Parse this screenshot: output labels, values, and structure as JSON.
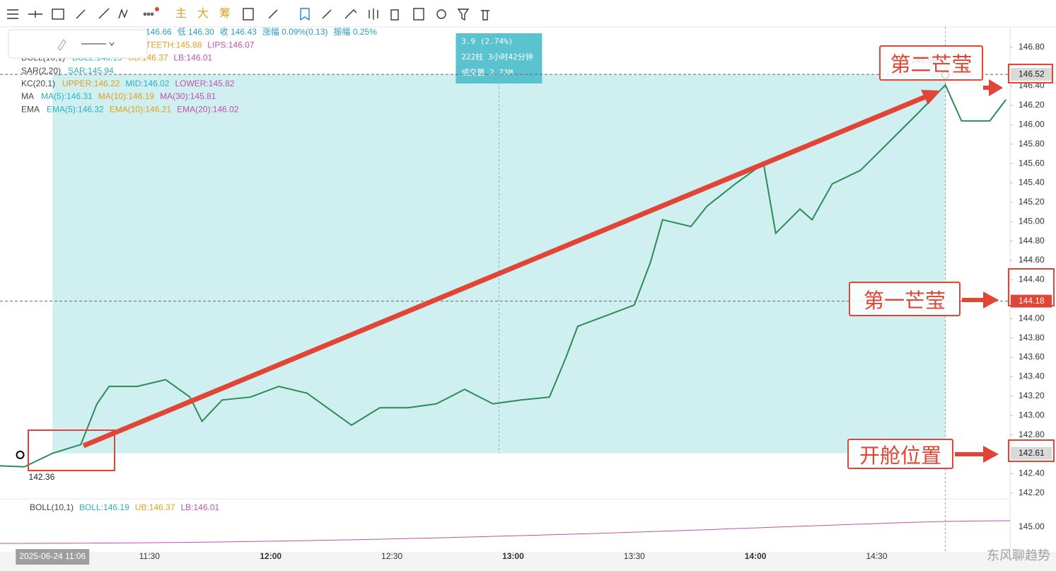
{
  "toolbar": {
    "buttons": [
      "主",
      "大",
      "筹"
    ]
  },
  "legend": [
    {
      "name": "",
      "items": [
        {
          "text": "146.66",
          "color": "#29a0c0"
        },
        {
          "text": "低 146.30",
          "color": "#29a0c0"
        },
        {
          "text": "收 146.43",
          "color": "#29a0c0"
        },
        {
          "text": "涨幅 0.09%(0.13)",
          "color": "#29a0c0"
        },
        {
          "text": "振幅 0.25%",
          "color": "#29a0c0"
        }
      ]
    },
    {
      "name": "",
      "items": [
        {
          "text": "TEETH:145.88",
          "color": "#e0a020"
        },
        {
          "text": "LIPS:146.07",
          "color": "#c050b0"
        }
      ]
    },
    {
      "name": "BOLL(10,1)",
      "items": [
        {
          "text": "BOLL:146.19",
          "color": "#29b0c8"
        },
        {
          "text": "UB:146.37",
          "color": "#e0a020"
        },
        {
          "text": "LB:146.01",
          "color": "#c050b0"
        }
      ]
    },
    {
      "name": "SAR(2,20)",
      "items": [
        {
          "text": "SAR:145.94",
          "color": "#29b0c8"
        }
      ]
    },
    {
      "name": "KC(20,1)",
      "items": [
        {
          "text": "UPPER:146.22",
          "color": "#e0a020"
        },
        {
          "text": "MID:146.02",
          "color": "#29b0c8"
        },
        {
          "text": "LOWER:145.82",
          "color": "#c050b0"
        }
      ]
    },
    {
      "name": "MA",
      "items": [
        {
          "text": "MA(5):146.31",
          "color": "#29b0c8"
        },
        {
          "text": "MA(10):146.19",
          "color": "#e0a020"
        },
        {
          "text": "MA(30):145.81",
          "color": "#c050b0"
        }
      ]
    },
    {
      "name": "EMA",
      "items": [
        {
          "text": "EMA(5):146.32",
          "color": "#29b0c8"
        },
        {
          "text": "EMA(10):146.21",
          "color": "#e0a020"
        },
        {
          "text": "EMA(20):146.02",
          "color": "#c050b0"
        }
      ]
    }
  ],
  "sub_legend": {
    "name": "BOLL(10,1)",
    "items": [
      {
        "text": "BOLL:146.19",
        "color": "#29b0c8"
      },
      {
        "text": "UB:146.37",
        "color": "#e0a020"
      },
      {
        "text": "LB:146.01",
        "color": "#c050b0"
      }
    ],
    "axis_label": "145.00"
  },
  "chart_data": {
    "type": "line",
    "color": "#2e8b57",
    "x": [
      "10:53",
      "10:59",
      "11:06",
      "11:13",
      "11:17",
      "11:20",
      "11:27",
      "11:34",
      "11:40",
      "11:43",
      "11:48",
      "11:55",
      "12:02",
      "12:09",
      "12:15",
      "12:20",
      "12:27",
      "12:34",
      "12:41",
      "12:48",
      "12:55",
      "13:02",
      "13:09",
      "13:13",
      "13:16",
      "13:23",
      "13:30",
      "13:34",
      "13:37",
      "13:44",
      "13:48",
      "13:55",
      "14:02",
      "14:05",
      "14:11",
      "14:14",
      "14:19",
      "14:26",
      "14:33",
      "14:40",
      "14:47",
      "14:51",
      "14:58",
      "15:02"
    ],
    "values": [
      142.48,
      142.47,
      142.61,
      142.7,
      143.12,
      143.3,
      143.3,
      143.37,
      143.19,
      142.94,
      143.16,
      143.19,
      143.3,
      143.23,
      143.05,
      142.9,
      143.08,
      143.08,
      143.12,
      143.27,
      143.12,
      143.16,
      143.19,
      143.59,
      143.92,
      144.03,
      144.14,
      144.58,
      145.02,
      144.95,
      145.16,
      145.39,
      145.6,
      144.88,
      145.13,
      145.02,
      145.39,
      145.53,
      145.82,
      146.11,
      146.41,
      146.04,
      146.04,
      146.26
    ],
    "xlim": [
      "10:53",
      "15:03"
    ],
    "ylim": [
      142.14,
      147.01
    ],
    "grid": false,
    "xticks": [
      "11:30",
      "12:00",
      "12:30",
      "13:00",
      "13:30",
      "14:00",
      "14:30"
    ],
    "x_start_label": "2025-06-24 11:06",
    "yticks": [
      {
        "value": 146.8,
        "label": "146.80"
      },
      {
        "value": 146.4,
        "label": "146.40"
      },
      {
        "value": 146.2,
        "label": "146.20"
      },
      {
        "value": 146,
        "label": "146.00"
      },
      {
        "value": 145.8,
        "label": "145.80"
      },
      {
        "value": 145.6,
        "label": "145.60"
      },
      {
        "value": 145.4,
        "label": "145.40"
      },
      {
        "value": 145.2,
        "label": "145.20"
      },
      {
        "value": 145,
        "label": "145.00"
      },
      {
        "value": 144.8,
        "label": "144.80"
      },
      {
        "value": 144.6,
        "label": "144.60"
      },
      {
        "value": 144.4,
        "label": "144.40"
      },
      {
        "value": 144,
        "label": "144.00"
      },
      {
        "value": 143.8,
        "label": "143.80"
      },
      {
        "value": 143.6,
        "label": "143.60"
      },
      {
        "value": 143.4,
        "label": "143.40"
      },
      {
        "value": 143.2,
        "label": "143.20"
      },
      {
        "value": 143,
        "label": "143.00"
      },
      {
        "value": 142.8,
        "label": "142.80"
      },
      {
        "value": 142.4,
        "label": "142.40"
      },
      {
        "value": 142.2,
        "label": "142.20"
      }
    ],
    "price_tags": [
      {
        "value": 146.52,
        "color": "#d9d9d9",
        "text_color": "#222",
        "dashed": true
      },
      {
        "value": 144.18,
        "color": "#e04535",
        "text_color": "#fff",
        "dashed": true
      },
      {
        "value": 142.61,
        "color": "#d9d9d9",
        "text_color": "#222",
        "dashed": false
      }
    ],
    "range_box": {
      "x": [
        "11:06",
        "14:47"
      ],
      "color": "#bfe9ec",
      "stats": [
        "3.9 (2.74%)",
        "222柱 3小时42分钟",
        "成交量 2.73M"
      ]
    },
    "markers": [
      {
        "x": "14:47",
        "value": 146.66
      },
      {
        "x": "10:58",
        "value": 142.36
      }
    ],
    "annotations": [
      "第二芒莹",
      "第一芒莹",
      "开舱位置"
    ],
    "watermark": "东风聊趋势"
  }
}
